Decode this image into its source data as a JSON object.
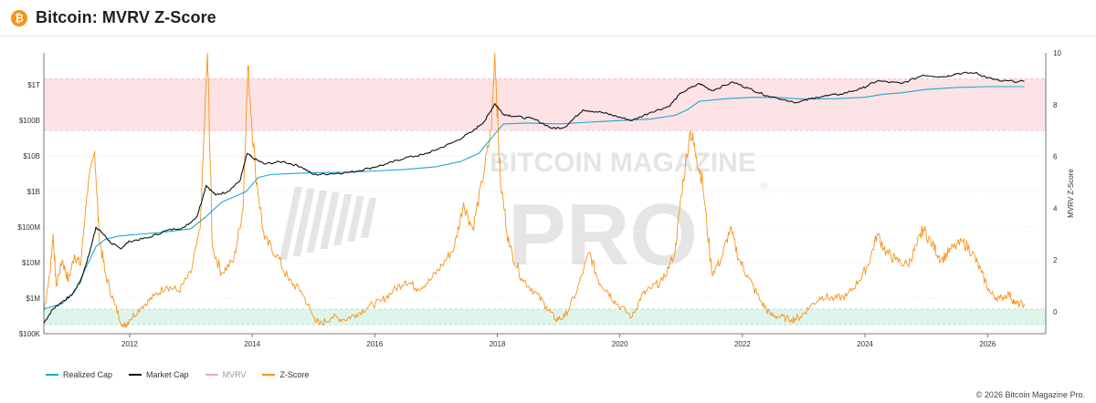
{
  "header": {
    "icon": "bitcoin-icon",
    "title": "Bitcoin: MVRV Z-Score"
  },
  "watermark": {
    "line1": "BITCOIN MAGAZINE",
    "line2": "PRO",
    "registered": "®"
  },
  "footer": {
    "copyright": "© 2026 Bitcoin Magazine Pro."
  },
  "colors": {
    "realized_cap": "#1ea7d6",
    "market_cap": "#111111",
    "mvrv": "#f4a7b0",
    "z_score": "#f7931a",
    "band_high": "#fde3e5",
    "band_low": "#dff5ec"
  },
  "chart_data": {
    "type": "line",
    "y_axis_left": {
      "scale": "log",
      "ticks": [
        {
          "value": 100000,
          "label": "$100K"
        },
        {
          "value": 1000000,
          "label": "$1M"
        },
        {
          "value": 10000000,
          "label": "$10M"
        },
        {
          "value": 100000000,
          "label": "$100M"
        },
        {
          "value": 1000000000,
          "label": "$1B"
        },
        {
          "value": 10000000000,
          "label": "$10B"
        },
        {
          "value": 100000000000,
          "label": "$100B"
        },
        {
          "value": 1000000000000,
          "label": "$1T"
        }
      ],
      "range": [
        100000,
        8000000000000
      ]
    },
    "y_axis_right": {
      "label": "MVRV Z-Score",
      "ticks": [
        0,
        2,
        4,
        6,
        8,
        10
      ],
      "range": [
        -0.85,
        10
      ]
    },
    "x_axis": {
      "ticks": [
        2012,
        2014,
        2016,
        2018,
        2020,
        2022,
        2024,
        2026
      ],
      "range": [
        2010.6,
        2026.95
      ]
    },
    "bands": [
      {
        "name": "high",
        "z_from": 7,
        "z_to": 9
      },
      {
        "name": "low",
        "z_from": -0.5,
        "z_to": 0.1
      }
    ],
    "series": [
      {
        "name": "Realized Cap",
        "key": "realized_cap",
        "axis": "left",
        "points": [
          [
            2010.6,
            500000
          ],
          [
            2010.9,
            700000
          ],
          [
            2011.1,
            1500000
          ],
          [
            2011.3,
            8000000
          ],
          [
            2011.45,
            28000000
          ],
          [
            2011.6,
            45000000
          ],
          [
            2011.8,
            55000000
          ],
          [
            2012.0,
            60000000
          ],
          [
            2012.5,
            70000000
          ],
          [
            2013.0,
            90000000
          ],
          [
            2013.25,
            200000000
          ],
          [
            2013.5,
            500000000
          ],
          [
            2013.9,
            1000000000
          ],
          [
            2014.1,
            2500000000
          ],
          [
            2014.3,
            3000000000
          ],
          [
            2014.6,
            3200000000
          ],
          [
            2015.0,
            3400000000
          ],
          [
            2015.5,
            3500000000
          ],
          [
            2016.0,
            3800000000
          ],
          [
            2016.5,
            4200000000
          ],
          [
            2017.0,
            5000000000
          ],
          [
            2017.4,
            7000000000
          ],
          [
            2017.7,
            12000000000
          ],
          [
            2017.95,
            40000000000
          ],
          [
            2018.1,
            80000000000
          ],
          [
            2018.5,
            85000000000
          ],
          [
            2019.0,
            80000000000
          ],
          [
            2019.5,
            90000000000
          ],
          [
            2020.0,
            100000000000
          ],
          [
            2020.5,
            110000000000
          ],
          [
            2020.9,
            140000000000
          ],
          [
            2021.1,
            200000000000
          ],
          [
            2021.3,
            350000000000
          ],
          [
            2021.8,
            420000000000
          ],
          [
            2022.2,
            450000000000
          ],
          [
            2022.6,
            440000000000
          ],
          [
            2023.0,
            400000000000
          ],
          [
            2023.5,
            410000000000
          ],
          [
            2024.0,
            450000000000
          ],
          [
            2024.3,
            550000000000
          ],
          [
            2024.6,
            600000000000
          ],
          [
            2025.0,
            750000000000
          ],
          [
            2025.5,
            850000000000
          ],
          [
            2026.0,
            900000000000
          ],
          [
            2026.6,
            900000000000
          ]
        ]
      },
      {
        "name": "Market Cap",
        "key": "market_cap",
        "axis": "left",
        "points": [
          [
            2010.6,
            200000
          ],
          [
            2010.75,
            500000
          ],
          [
            2010.9,
            800000
          ],
          [
            2011.05,
            1200000
          ],
          [
            2011.2,
            3000000
          ],
          [
            2011.35,
            20000000
          ],
          [
            2011.45,
            100000000
          ],
          [
            2011.55,
            70000000
          ],
          [
            2011.7,
            35000000
          ],
          [
            2011.85,
            25000000
          ],
          [
            2012.0,
            40000000
          ],
          [
            2012.3,
            50000000
          ],
          [
            2012.6,
            80000000
          ],
          [
            2012.9,
            100000000
          ],
          [
            2013.1,
            200000000
          ],
          [
            2013.25,
            1500000000
          ],
          [
            2013.4,
            800000000
          ],
          [
            2013.6,
            1000000000
          ],
          [
            2013.8,
            2000000000
          ],
          [
            2013.92,
            12000000000
          ],
          [
            2014.0,
            9000000000
          ],
          [
            2014.2,
            6000000000
          ],
          [
            2014.5,
            7000000000
          ],
          [
            2014.8,
            5000000000
          ],
          [
            2015.0,
            3000000000
          ],
          [
            2015.3,
            3200000000
          ],
          [
            2015.6,
            3500000000
          ],
          [
            2015.9,
            4500000000
          ],
          [
            2016.2,
            6000000000
          ],
          [
            2016.5,
            9000000000
          ],
          [
            2016.8,
            11000000000
          ],
          [
            2017.0,
            15000000000
          ],
          [
            2017.3,
            25000000000
          ],
          [
            2017.6,
            50000000000
          ],
          [
            2017.8,
            100000000000
          ],
          [
            2017.96,
            300000000000
          ],
          [
            2018.1,
            150000000000
          ],
          [
            2018.3,
            130000000000
          ],
          [
            2018.6,
            110000000000
          ],
          [
            2018.9,
            60000000000
          ],
          [
            2019.1,
            65000000000
          ],
          [
            2019.4,
            200000000000
          ],
          [
            2019.7,
            170000000000
          ],
          [
            2019.95,
            130000000000
          ],
          [
            2020.2,
            100000000000
          ],
          [
            2020.5,
            170000000000
          ],
          [
            2020.8,
            250000000000
          ],
          [
            2021.0,
            600000000000
          ],
          [
            2021.3,
            1100000000000
          ],
          [
            2021.5,
            700000000000
          ],
          [
            2021.85,
            1200000000000
          ],
          [
            2022.1,
            800000000000
          ],
          [
            2022.4,
            500000000000
          ],
          [
            2022.9,
            320000000000
          ],
          [
            2023.2,
            450000000000
          ],
          [
            2023.6,
            550000000000
          ],
          [
            2023.95,
            800000000000
          ],
          [
            2024.2,
            1300000000000
          ],
          [
            2024.6,
            1100000000000
          ],
          [
            2024.95,
            1900000000000
          ],
          [
            2025.3,
            1700000000000
          ],
          [
            2025.5,
            2100000000000
          ],
          [
            2025.8,
            2200000000000
          ],
          [
            2026.0,
            1600000000000
          ],
          [
            2026.2,
            1300000000000
          ],
          [
            2026.6,
            1250000000000
          ]
        ]
      },
      {
        "name": "MVRV",
        "key": "mvrv",
        "axis": "left",
        "points": []
      },
      {
        "name": "Z-Score",
        "key": "z_score",
        "axis": "right",
        "points": [
          [
            2010.6,
            0.0
          ],
          [
            2010.7,
            1.5
          ],
          [
            2010.75,
            3.0
          ],
          [
            2010.8,
            1.0
          ],
          [
            2010.9,
            2.0
          ],
          [
            2011.0,
            1.2
          ],
          [
            2011.1,
            2.2
          ],
          [
            2011.2,
            1.8
          ],
          [
            2011.3,
            4.5
          ],
          [
            2011.43,
            6.2
          ],
          [
            2011.5,
            3.0
          ],
          [
            2011.6,
            1.5
          ],
          [
            2011.75,
            0.3
          ],
          [
            2011.9,
            -0.6
          ],
          [
            2012.0,
            -0.3
          ],
          [
            2012.2,
            0.2
          ],
          [
            2012.4,
            0.6
          ],
          [
            2012.6,
            1.0
          ],
          [
            2012.8,
            0.8
          ],
          [
            2013.0,
            1.5
          ],
          [
            2013.15,
            3.2
          ],
          [
            2013.27,
            10.0
          ],
          [
            2013.35,
            2.5
          ],
          [
            2013.5,
            1.5
          ],
          [
            2013.7,
            2.0
          ],
          [
            2013.85,
            4.0
          ],
          [
            2013.93,
            9.5
          ],
          [
            2014.05,
            5.5
          ],
          [
            2014.2,
            2.8
          ],
          [
            2014.4,
            2.2
          ],
          [
            2014.6,
            1.2
          ],
          [
            2014.8,
            0.8
          ],
          [
            2015.0,
            -0.2
          ],
          [
            2015.1,
            -0.5
          ],
          [
            2015.3,
            -0.2
          ],
          [
            2015.5,
            -0.3
          ],
          [
            2015.7,
            -0.1
          ],
          [
            2015.9,
            0.2
          ],
          [
            2016.1,
            0.4
          ],
          [
            2016.3,
            0.8
          ],
          [
            2016.5,
            1.2
          ],
          [
            2016.7,
            0.9
          ],
          [
            2016.9,
            1.2
          ],
          [
            2017.1,
            1.8
          ],
          [
            2017.3,
            2.5
          ],
          [
            2017.45,
            4.2
          ],
          [
            2017.6,
            3.2
          ],
          [
            2017.75,
            5.0
          ],
          [
            2017.9,
            7.0
          ],
          [
            2017.96,
            10.0
          ],
          [
            2018.05,
            5.0
          ],
          [
            2018.2,
            2.5
          ],
          [
            2018.4,
            1.3
          ],
          [
            2018.6,
            0.8
          ],
          [
            2018.8,
            0.2
          ],
          [
            2018.95,
            -0.3
          ],
          [
            2019.1,
            -0.2
          ],
          [
            2019.3,
            0.8
          ],
          [
            2019.5,
            2.3
          ],
          [
            2019.65,
            1.2
          ],
          [
            2019.8,
            0.8
          ],
          [
            2019.95,
            0.3
          ],
          [
            2020.2,
            -0.2
          ],
          [
            2020.35,
            0.6
          ],
          [
            2020.5,
            0.9
          ],
          [
            2020.7,
            1.2
          ],
          [
            2020.9,
            2.3
          ],
          [
            2021.0,
            4.5
          ],
          [
            2021.15,
            7.0
          ],
          [
            2021.25,
            6.0
          ],
          [
            2021.35,
            5.0
          ],
          [
            2021.5,
            1.5
          ],
          [
            2021.65,
            2.0
          ],
          [
            2021.8,
            3.2
          ],
          [
            2021.95,
            2.0
          ],
          [
            2022.1,
            1.3
          ],
          [
            2022.3,
            0.4
          ],
          [
            2022.45,
            -0.1
          ],
          [
            2022.6,
            -0.2
          ],
          [
            2022.8,
            -0.3
          ],
          [
            2022.95,
            -0.2
          ],
          [
            2023.1,
            0.2
          ],
          [
            2023.3,
            0.6
          ],
          [
            2023.5,
            0.5
          ],
          [
            2023.7,
            0.6
          ],
          [
            2023.9,
            1.2
          ],
          [
            2024.05,
            1.8
          ],
          [
            2024.2,
            3.0
          ],
          [
            2024.35,
            2.3
          ],
          [
            2024.5,
            2.0
          ],
          [
            2024.7,
            1.8
          ],
          [
            2024.85,
            2.6
          ],
          [
            2024.95,
            3.2
          ],
          [
            2025.1,
            2.6
          ],
          [
            2025.25,
            2.0
          ],
          [
            2025.4,
            2.4
          ],
          [
            2025.6,
            2.7
          ],
          [
            2025.75,
            2.3
          ],
          [
            2025.9,
            1.5
          ],
          [
            2026.05,
            0.7
          ],
          [
            2026.2,
            0.5
          ],
          [
            2026.35,
            0.7
          ],
          [
            2026.45,
            0.3
          ],
          [
            2026.6,
            0.3
          ]
        ]
      }
    ],
    "legend_placement": "bottom-left"
  }
}
